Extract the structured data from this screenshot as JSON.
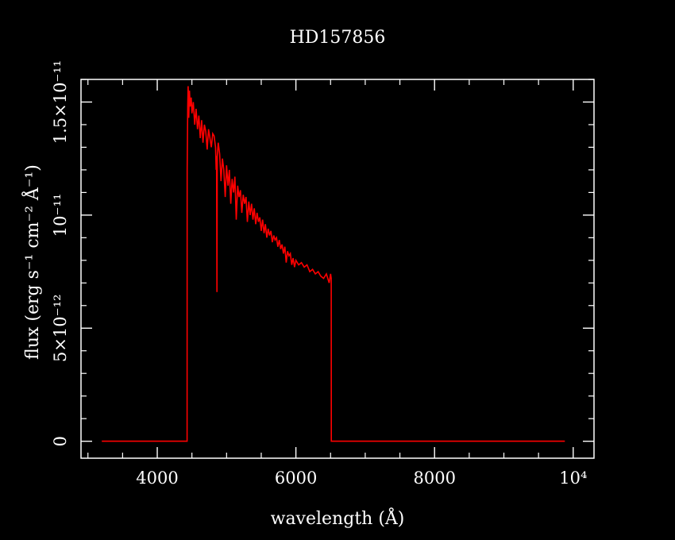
{
  "chart_data": {
    "type": "line",
    "title": "HD157856",
    "xlabel": "wavelength (Å)",
    "ylabel": "flux (erg s⁻¹ cm⁻² Å⁻¹)",
    "xlim": [
      2900,
      10300
    ],
    "ylim": [
      -7.5e-13,
      1.6e-11
    ],
    "x_ticks": [
      {
        "value": 4000,
        "label": "4000"
      },
      {
        "value": 6000,
        "label": "6000"
      },
      {
        "value": 8000,
        "label": "8000"
      },
      {
        "value": 10000,
        "label": "10⁴"
      }
    ],
    "y_ticks": [
      {
        "value": 0,
        "label": "0"
      },
      {
        "value": 5e-12,
        "label": "5×10⁻¹²"
      },
      {
        "value": 1e-11,
        "label": "10⁻¹¹"
      },
      {
        "value": 1.5e-11,
        "label": "1.5×10⁻¹¹"
      }
    ],
    "x_minor_step": 500,
    "y_minor_step": 1e-12,
    "grid": false,
    "series": [
      {
        "color": "#ff0000",
        "x": [
          3200,
          4430,
          4431,
          4440,
          4445,
          4455,
          4465,
          4475,
          4490,
          4500,
          4520,
          4540,
          4560,
          4580,
          4600,
          4620,
          4640,
          4660,
          4680,
          4700,
          4720,
          4740,
          4760,
          4780,
          4800,
          4820,
          4840,
          4850,
          4855,
          4861,
          4866,
          4880,
          4900,
          4920,
          4940,
          4960,
          4980,
          5000,
          5020,
          5040,
          5060,
          5080,
          5100,
          5120,
          5140,
          5160,
          5180,
          5200,
          5220,
          5240,
          5260,
          5280,
          5300,
          5320,
          5340,
          5360,
          5380,
          5400,
          5420,
          5440,
          5460,
          5480,
          5500,
          5520,
          5540,
          5560,
          5580,
          5600,
          5620,
          5640,
          5660,
          5680,
          5700,
          5720,
          5740,
          5760,
          5780,
          5800,
          5820,
          5840,
          5860,
          5880,
          5900,
          5920,
          5940,
          5960,
          5980,
          6000,
          6040,
          6080,
          6120,
          6160,
          6200,
          6240,
          6280,
          6320,
          6360,
          6400,
          6440,
          6480,
          6500,
          6510,
          6511,
          9880
        ],
        "y": [
          0,
          0,
          1.2e-11,
          1.48e-11,
          1.57e-11,
          1.43e-11,
          1.55e-11,
          1.48e-11,
          1.52e-11,
          1.45e-11,
          1.5e-11,
          1.4e-11,
          1.47e-11,
          1.38e-11,
          1.44e-11,
          1.34e-11,
          1.42e-11,
          1.32e-11,
          1.4e-11,
          1.37e-11,
          1.29e-11,
          1.38e-11,
          1.34e-11,
          1.3e-11,
          1.36e-11,
          1.35e-11,
          1.3e-11,
          1.2e-11,
          1.26e-11,
          6.6e-12,
          1.26e-11,
          1.32e-11,
          1.27e-11,
          1.15e-11,
          1.25e-11,
          1.2e-11,
          1.08e-11,
          1.22e-11,
          1.13e-11,
          1.2e-11,
          1.05e-11,
          1.16e-11,
          1.1e-11,
          1.17e-11,
          9.8e-12,
          1.13e-11,
          1.08e-11,
          1.11e-11,
          1.01e-11,
          1.09e-11,
          1.05e-11,
          1.08e-11,
          9.7e-12,
          1.06e-11,
          1e-11,
          1.05e-11,
          9.8e-12,
          1.03e-11,
          9.6e-12,
          1.01e-11,
          9.7e-12,
          9.9e-12,
          9.3e-12,
          9.8e-12,
          9.2e-12,
          9.6e-12,
          9e-12,
          9.4e-12,
          9.1e-12,
          9.3e-12,
          8.8e-12,
          9.1e-12,
          8.9e-12,
          9e-12,
          8.6e-12,
          8.9e-12,
          8.5e-12,
          8.7e-12,
          8.3e-12,
          8.6e-12,
          7.9e-12,
          8.4e-12,
          8.2e-12,
          8.3e-12,
          7.8e-12,
          8.1e-12,
          7.7e-12,
          8e-12,
          7.8e-12,
          7.9e-12,
          7.7e-12,
          7.8e-12,
          7.5e-12,
          7.6e-12,
          7.4e-12,
          7.5e-12,
          7.3e-12,
          7.2e-12,
          7.4e-12,
          7e-12,
          7.4e-12,
          7.2e-12,
          0,
          0
        ]
      }
    ]
  }
}
